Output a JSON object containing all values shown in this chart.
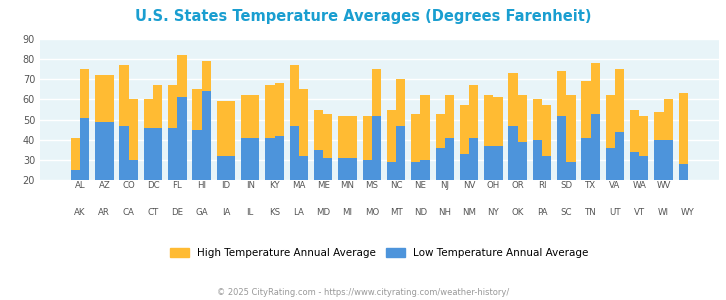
{
  "title": "U.S. States Temperature Averages (Degrees Farenheit)",
  "title_color": "#1a9ed0",
  "footer": "© 2025 CityRating.com - https://www.cityrating.com/weather-history/",
  "footer_color": "#999999",
  "bg_color": "#e8f4f8",
  "bar_color_high": "#ffbb33",
  "bar_color_low": "#4d94db",
  "ylim": [
    20,
    90
  ],
  "yticks": [
    20,
    30,
    40,
    50,
    60,
    70,
    80,
    90
  ],
  "states_top": [
    "AL",
    "AZ",
    "CO",
    "DC",
    "FL",
    "HI",
    "ID",
    "IN",
    "KY",
    "MA",
    "ME",
    "MN",
    "MS",
    "NC",
    "NE",
    "NJ",
    "NV",
    "OH",
    "OR",
    "RI",
    "SD",
    "TX",
    "VA",
    "WA",
    "WV"
  ],
  "states_bot": [
    "AK",
    "AR",
    "CA",
    "CT",
    "DE",
    "GA",
    "IA",
    "IL",
    "KS",
    "LA",
    "MD",
    "MI",
    "MO",
    "MT",
    "ND",
    "NH",
    "NM",
    "NY",
    "OK",
    "PA",
    "SC",
    "TN",
    "UT",
    "VT",
    "WI",
    "WY"
  ],
  "high_top": [
    75,
    72,
    60,
    67,
    82,
    79,
    59,
    62,
    68,
    65,
    53,
    52,
    75,
    70,
    62,
    62,
    67,
    61,
    62,
    57,
    62,
    78,
    75,
    52,
    60
  ],
  "low_top": [
    51,
    49,
    30,
    46,
    61,
    64,
    32,
    41,
    42,
    32,
    31,
    31,
    52,
    47,
    30,
    41,
    41,
    37,
    39,
    32,
    29,
    53,
    44,
    32,
    40
  ],
  "high_bot": [
    41,
    72,
    77,
    60,
    67,
    65,
    59,
    62,
    67,
    77,
    55,
    52,
    52,
    55,
    53,
    53,
    57,
    62,
    73,
    60,
    74,
    69,
    62,
    55,
    54,
    63
  ],
  "low_bot": [
    25,
    49,
    47,
    46,
    46,
    45,
    32,
    41,
    41,
    47,
    35,
    31,
    30,
    29,
    29,
    36,
    33,
    37,
    47,
    40,
    52,
    41,
    36,
    34,
    40,
    28
  ],
  "legend_high": "High Temperature Annual Average",
  "legend_low": "Low Temperature Annual Average"
}
